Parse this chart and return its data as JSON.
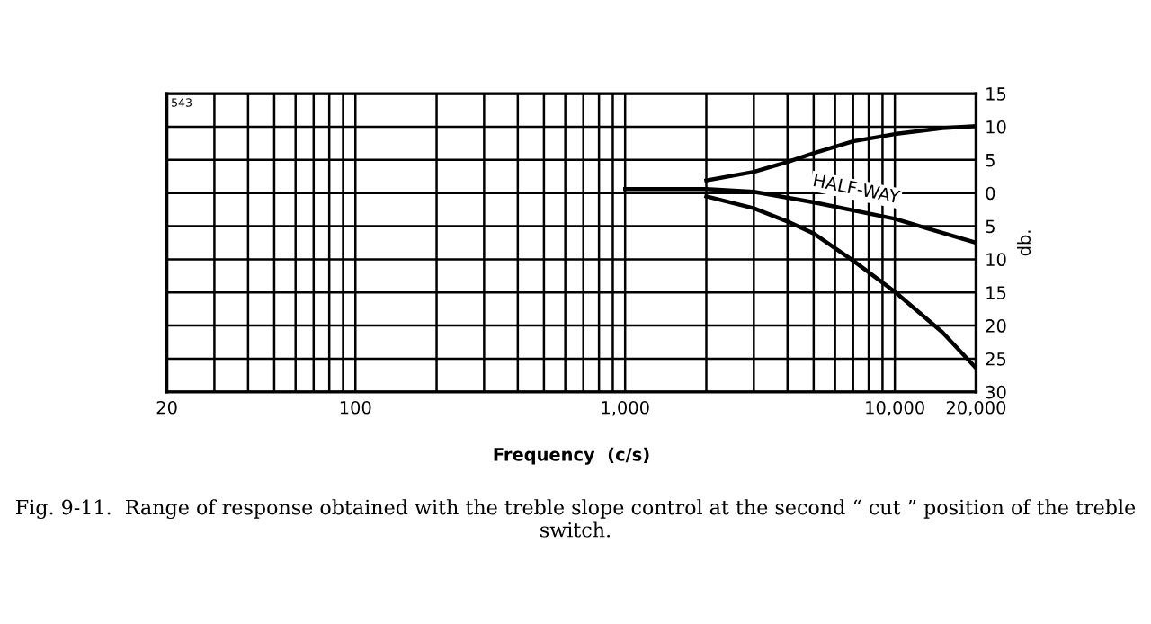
{
  "chart_data": {
    "type": "line",
    "xlabel": "Frequency  (c/s)",
    "ylabel": "db.",
    "log": "x",
    "grid": true,
    "legend": false,
    "marker": "none",
    "line_style": "solid",
    "xlim": [
      20,
      20000
    ],
    "ylim": [
      -30,
      15
    ],
    "xticks": [
      20,
      {
        "value": 30,
        "label": null
      },
      {
        "value": 40,
        "label": null
      },
      {
        "value": 50,
        "label": null
      },
      {
        "value": 60,
        "label": null
      },
      {
        "value": 70,
        "label": null
      },
      {
        "value": 80,
        "label": null
      },
      {
        "value": 90,
        "label": null
      },
      100,
      {
        "value": 200,
        "label": null
      },
      {
        "value": 300,
        "label": null
      },
      {
        "value": 400,
        "label": null
      },
      {
        "value": 500,
        "label": null
      },
      {
        "value": 600,
        "label": null
      },
      {
        "value": 700,
        "label": null
      },
      {
        "value": 800,
        "label": null
      },
      {
        "value": 900,
        "label": null
      },
      {
        "value": 1000,
        "label": "1,000"
      },
      {
        "value": 2000,
        "label": null
      },
      {
        "value": 3000,
        "label": null
      },
      {
        "value": 4000,
        "label": null
      },
      {
        "value": 5000,
        "label": null
      },
      {
        "value": 6000,
        "label": null
      },
      {
        "value": 7000,
        "label": null
      },
      {
        "value": 8000,
        "label": null
      },
      {
        "value": 9000,
        "label": null
      },
      {
        "value": 10000,
        "label": "10,000"
      },
      {
        "value": 20000,
        "label": "20,000"
      }
    ],
    "yticks": [
      15,
      10,
      5,
      0,
      {
        "value": -5,
        "label": "5"
      },
      {
        "value": -10,
        "label": "10"
      },
      {
        "value": -15,
        "label": "15"
      },
      {
        "value": -20,
        "label": "20"
      },
      {
        "value": -25,
        "label": "25"
      },
      {
        "value": -30,
        "label": "30"
      }
    ],
    "series": [
      {
        "color": "#000000",
        "x": [
          2000,
          3000,
          4000,
          5000,
          7000,
          10000,
          15000,
          20000
        ],
        "values": [
          1.9,
          3.2,
          4.7,
          6.0,
          7.8,
          8.9,
          9.8,
          10.1
        ]
      },
      {
        "name": "HALF-WAY",
        "color": "#000000",
        "x": [
          1000,
          2000,
          3000,
          5000,
          10000,
          20000
        ],
        "values": [
          0.6,
          0.6,
          0.2,
          -1.4,
          -3.9,
          -7.5
        ]
      },
      {
        "color": "#000000",
        "x": [
          2000,
          3000,
          4000,
          5000,
          7000,
          10000,
          15000,
          20000
        ],
        "values": [
          -0.5,
          -2.3,
          -4.3,
          -6.1,
          -10.2,
          -14.9,
          -21,
          -26.4
        ]
      }
    ],
    "annotations": [
      "543",
      "Fig. 9-11.  Range of response obtained with the treble slope control at the second “ cut ” position of the treble switch."
    ]
  }
}
